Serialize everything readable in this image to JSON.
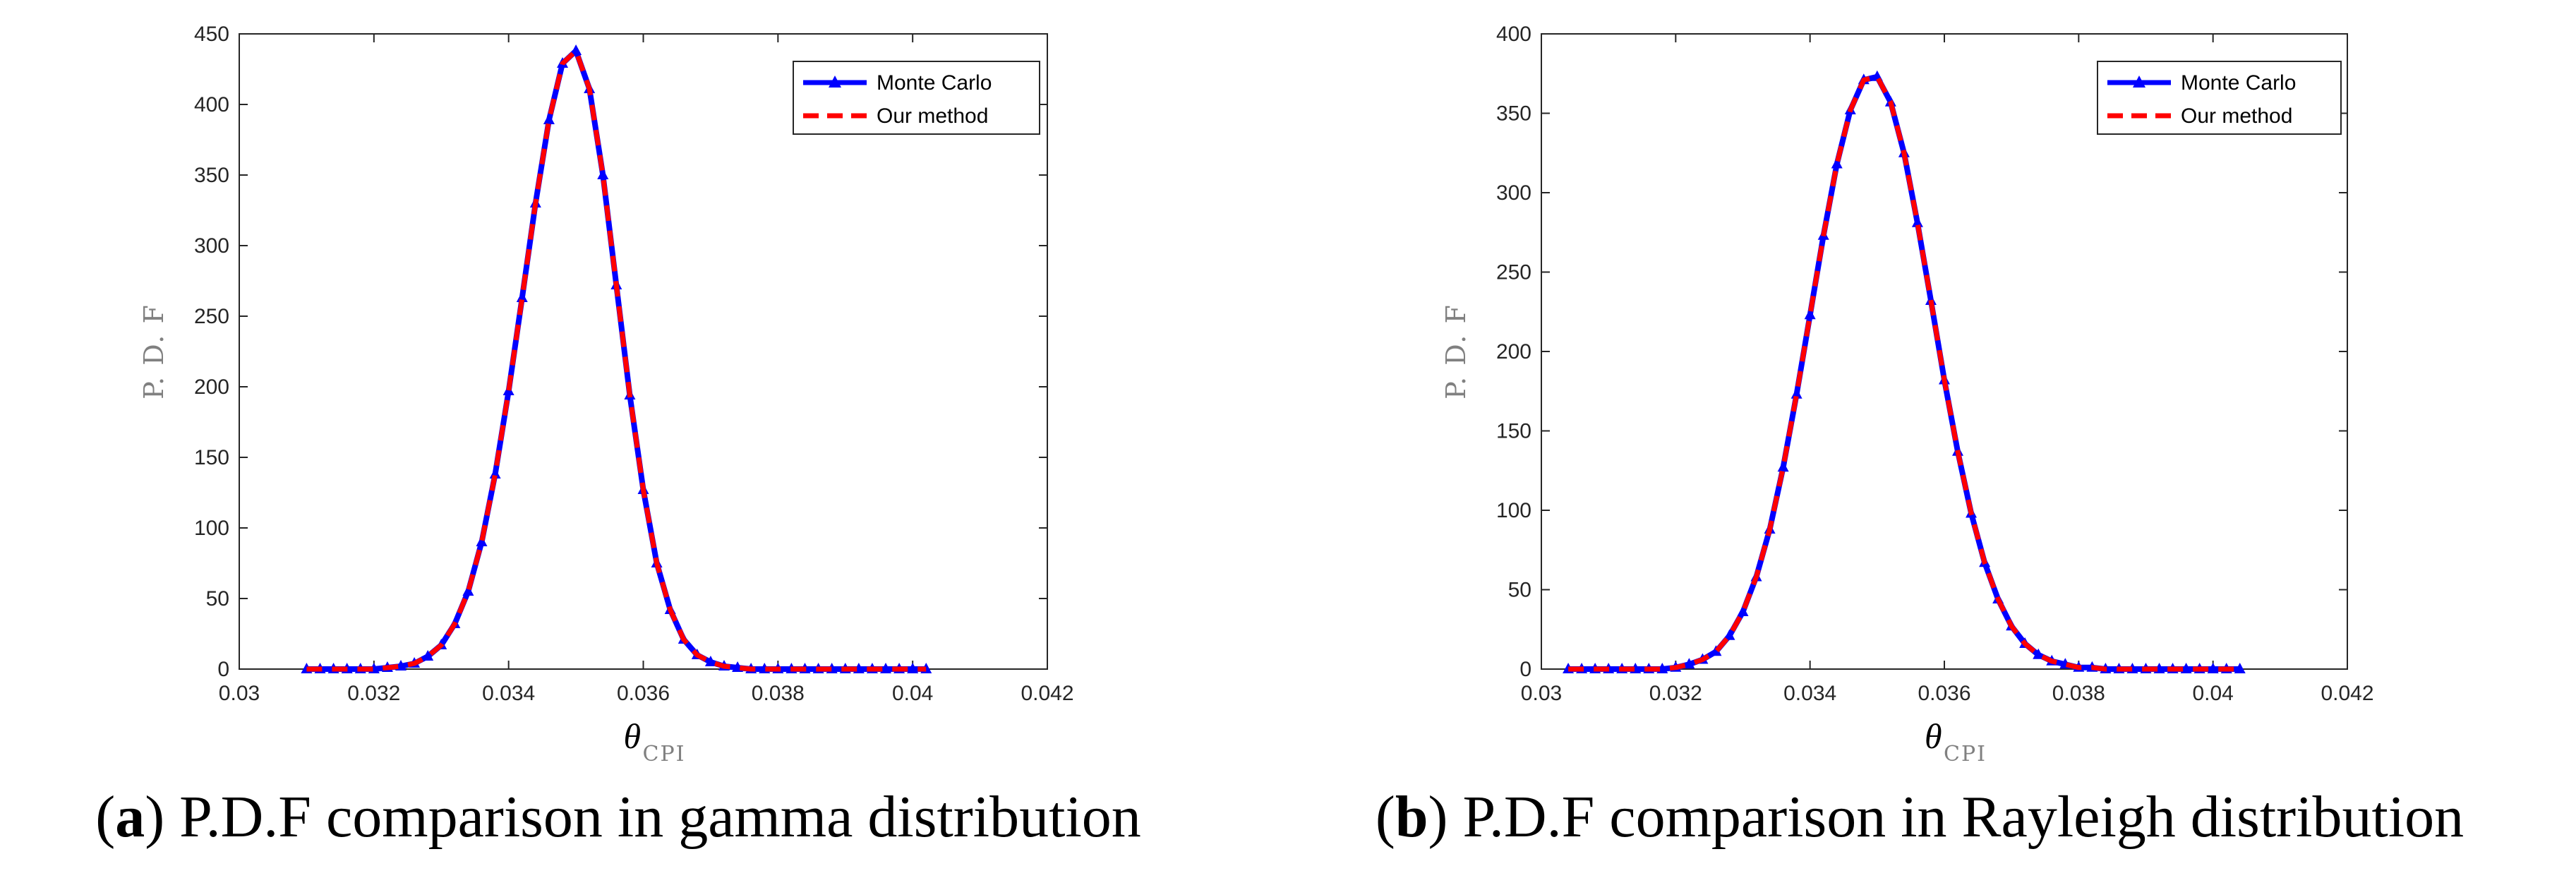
{
  "chart_data": [
    {
      "type": "line",
      "panel_letter": "a",
      "caption": "P.D.F comparison in gamma distribution",
      "ylabel": "P. D. F",
      "xlabel_symbol": "θ",
      "xlabel_subscript": "CPI",
      "xlim": [
        0.03,
        0.042
      ],
      "ylim": [
        0,
        450
      ],
      "xticks": [
        0.03,
        0.032,
        0.034,
        0.036,
        0.038,
        0.04,
        0.042
      ],
      "xtick_labels": [
        "0.03",
        "0.032",
        "0.034",
        "0.036",
        "0.038",
        "0.04",
        "0.042"
      ],
      "yticks": [
        0,
        50,
        100,
        150,
        200,
        250,
        300,
        350,
        400,
        450
      ],
      "ytick_labels": [
        "0",
        "50",
        "100",
        "150",
        "200",
        "250",
        "300",
        "350",
        "400",
        "450"
      ],
      "legend_position": "top-right",
      "series": [
        {
          "name": "Monte Carlo",
          "color": "#0000ff",
          "style": "solid",
          "marker": "triangle",
          "x": [
            0.031,
            0.0312,
            0.0314,
            0.0316,
            0.0318,
            0.032,
            0.0322,
            0.0324,
            0.0326,
            0.0328,
            0.033,
            0.0332,
            0.0334,
            0.0336,
            0.0338,
            0.034,
            0.0342,
            0.0344,
            0.0346,
            0.0348,
            0.035,
            0.0352,
            0.0354,
            0.0356,
            0.0358,
            0.036,
            0.0362,
            0.0364,
            0.0366,
            0.0368,
            0.037,
            0.0372,
            0.0374,
            0.0376,
            0.0378,
            0.038,
            0.0382,
            0.0384,
            0.0386,
            0.0388,
            0.039,
            0.0392,
            0.0394,
            0.0396,
            0.0398,
            0.04,
            0.0402
          ],
          "y": [
            0,
            0,
            0,
            0,
            0,
            0,
            1,
            2,
            4,
            9,
            17,
            32,
            55,
            90,
            138,
            197,
            263,
            330,
            389,
            429,
            438,
            411,
            350,
            272,
            194,
            127,
            75,
            42,
            21,
            10,
            5,
            2,
            1,
            0,
            0,
            0,
            0,
            0,
            0,
            0,
            0,
            0,
            0,
            0,
            0,
            0,
            0
          ]
        },
        {
          "name": "Our method",
          "color": "#ff0000",
          "style": "dashed",
          "x": [
            0.031,
            0.0312,
            0.0314,
            0.0316,
            0.0318,
            0.032,
            0.0322,
            0.0324,
            0.0326,
            0.0328,
            0.033,
            0.0332,
            0.0334,
            0.0336,
            0.0338,
            0.034,
            0.0342,
            0.0344,
            0.0346,
            0.0348,
            0.035,
            0.0352,
            0.0354,
            0.0356,
            0.0358,
            0.036,
            0.0362,
            0.0364,
            0.0366,
            0.0368,
            0.037,
            0.0372,
            0.0374,
            0.0376,
            0.0378,
            0.038,
            0.0382,
            0.0384,
            0.0386,
            0.0388,
            0.039,
            0.0392,
            0.0394,
            0.0396,
            0.0398,
            0.04,
            0.0402
          ],
          "y": [
            0,
            0,
            0,
            0,
            0,
            0,
            1,
            2,
            4,
            9,
            17,
            32,
            55,
            90,
            138,
            197,
            263,
            330,
            389,
            429,
            438,
            411,
            350,
            272,
            194,
            127,
            75,
            42,
            21,
            10,
            5,
            2,
            1,
            0,
            0,
            0,
            0,
            0,
            0,
            0,
            0,
            0,
            0,
            0,
            0,
            0,
            0
          ]
        }
      ]
    },
    {
      "type": "line",
      "panel_letter": "b",
      "caption": "P.D.F comparison in Rayleigh distribution",
      "ylabel": "P. D. F",
      "xlabel_symbol": "θ",
      "xlabel_subscript": "CPI",
      "xlim": [
        0.03,
        0.042
      ],
      "ylim": [
        0,
        400
      ],
      "xticks": [
        0.03,
        0.032,
        0.034,
        0.036,
        0.038,
        0.04,
        0.042
      ],
      "xtick_labels": [
        "0.03",
        "0.032",
        "0.034",
        "0.036",
        "0.038",
        "0.04",
        "0.042"
      ],
      "yticks": [
        0,
        50,
        100,
        150,
        200,
        250,
        300,
        350,
        400
      ],
      "ytick_labels": [
        "0",
        "50",
        "100",
        "150",
        "200",
        "250",
        "300",
        "350",
        "400"
      ],
      "legend_position": "top-right",
      "series": [
        {
          "name": "Monte Carlo",
          "color": "#0000ff",
          "style": "solid",
          "marker": "triangle",
          "x": [
            0.0304,
            0.0306,
            0.0308,
            0.031,
            0.0312,
            0.0314,
            0.0316,
            0.0318,
            0.032,
            0.0322,
            0.0324,
            0.0326,
            0.0328,
            0.033,
            0.0332,
            0.0334,
            0.0336,
            0.0338,
            0.034,
            0.0342,
            0.0344,
            0.0346,
            0.0348,
            0.035,
            0.0352,
            0.0354,
            0.0356,
            0.0358,
            0.036,
            0.0362,
            0.0364,
            0.0366,
            0.0368,
            0.037,
            0.0372,
            0.0374,
            0.0376,
            0.0378,
            0.038,
            0.0382,
            0.0384,
            0.0386,
            0.0388,
            0.039,
            0.0392,
            0.0394,
            0.0396,
            0.0398,
            0.04,
            0.0402,
            0.0404
          ],
          "y": [
            0,
            0,
            0,
            0,
            0,
            0,
            0,
            0,
            1,
            3,
            6,
            11,
            21,
            36,
            58,
            88,
            127,
            173,
            223,
            273,
            318,
            352,
            371,
            373,
            357,
            325,
            281,
            232,
            182,
            137,
            98,
            67,
            44,
            27,
            16,
            9,
            5,
            3,
            1,
            1,
            0,
            0,
            0,
            0,
            0,
            0,
            0,
            0,
            0,
            0,
            0
          ]
        },
        {
          "name": "Our method",
          "color": "#ff0000",
          "style": "dashed",
          "x": [
            0.0304,
            0.0306,
            0.0308,
            0.031,
            0.0312,
            0.0314,
            0.0316,
            0.0318,
            0.032,
            0.0322,
            0.0324,
            0.0326,
            0.0328,
            0.033,
            0.0332,
            0.0334,
            0.0336,
            0.0338,
            0.034,
            0.0342,
            0.0344,
            0.0346,
            0.0348,
            0.035,
            0.0352,
            0.0354,
            0.0356,
            0.0358,
            0.036,
            0.0362,
            0.0364,
            0.0366,
            0.0368,
            0.037,
            0.0372,
            0.0374,
            0.0376,
            0.0378,
            0.038,
            0.0382,
            0.0384,
            0.0386,
            0.0388,
            0.039,
            0.0392,
            0.0394,
            0.0396,
            0.0398,
            0.04,
            0.0402,
            0.0404
          ],
          "y": [
            0,
            0,
            0,
            0,
            0,
            0,
            0,
            0,
            1,
            3,
            6,
            11,
            21,
            36,
            58,
            88,
            127,
            173,
            223,
            273,
            318,
            352,
            371,
            373,
            357,
            325,
            281,
            232,
            182,
            137,
            98,
            67,
            44,
            27,
            16,
            9,
            5,
            3,
            1,
            1,
            0,
            0,
            0,
            0,
            0,
            0,
            0,
            0,
            0,
            0,
            0
          ]
        }
      ]
    }
  ]
}
